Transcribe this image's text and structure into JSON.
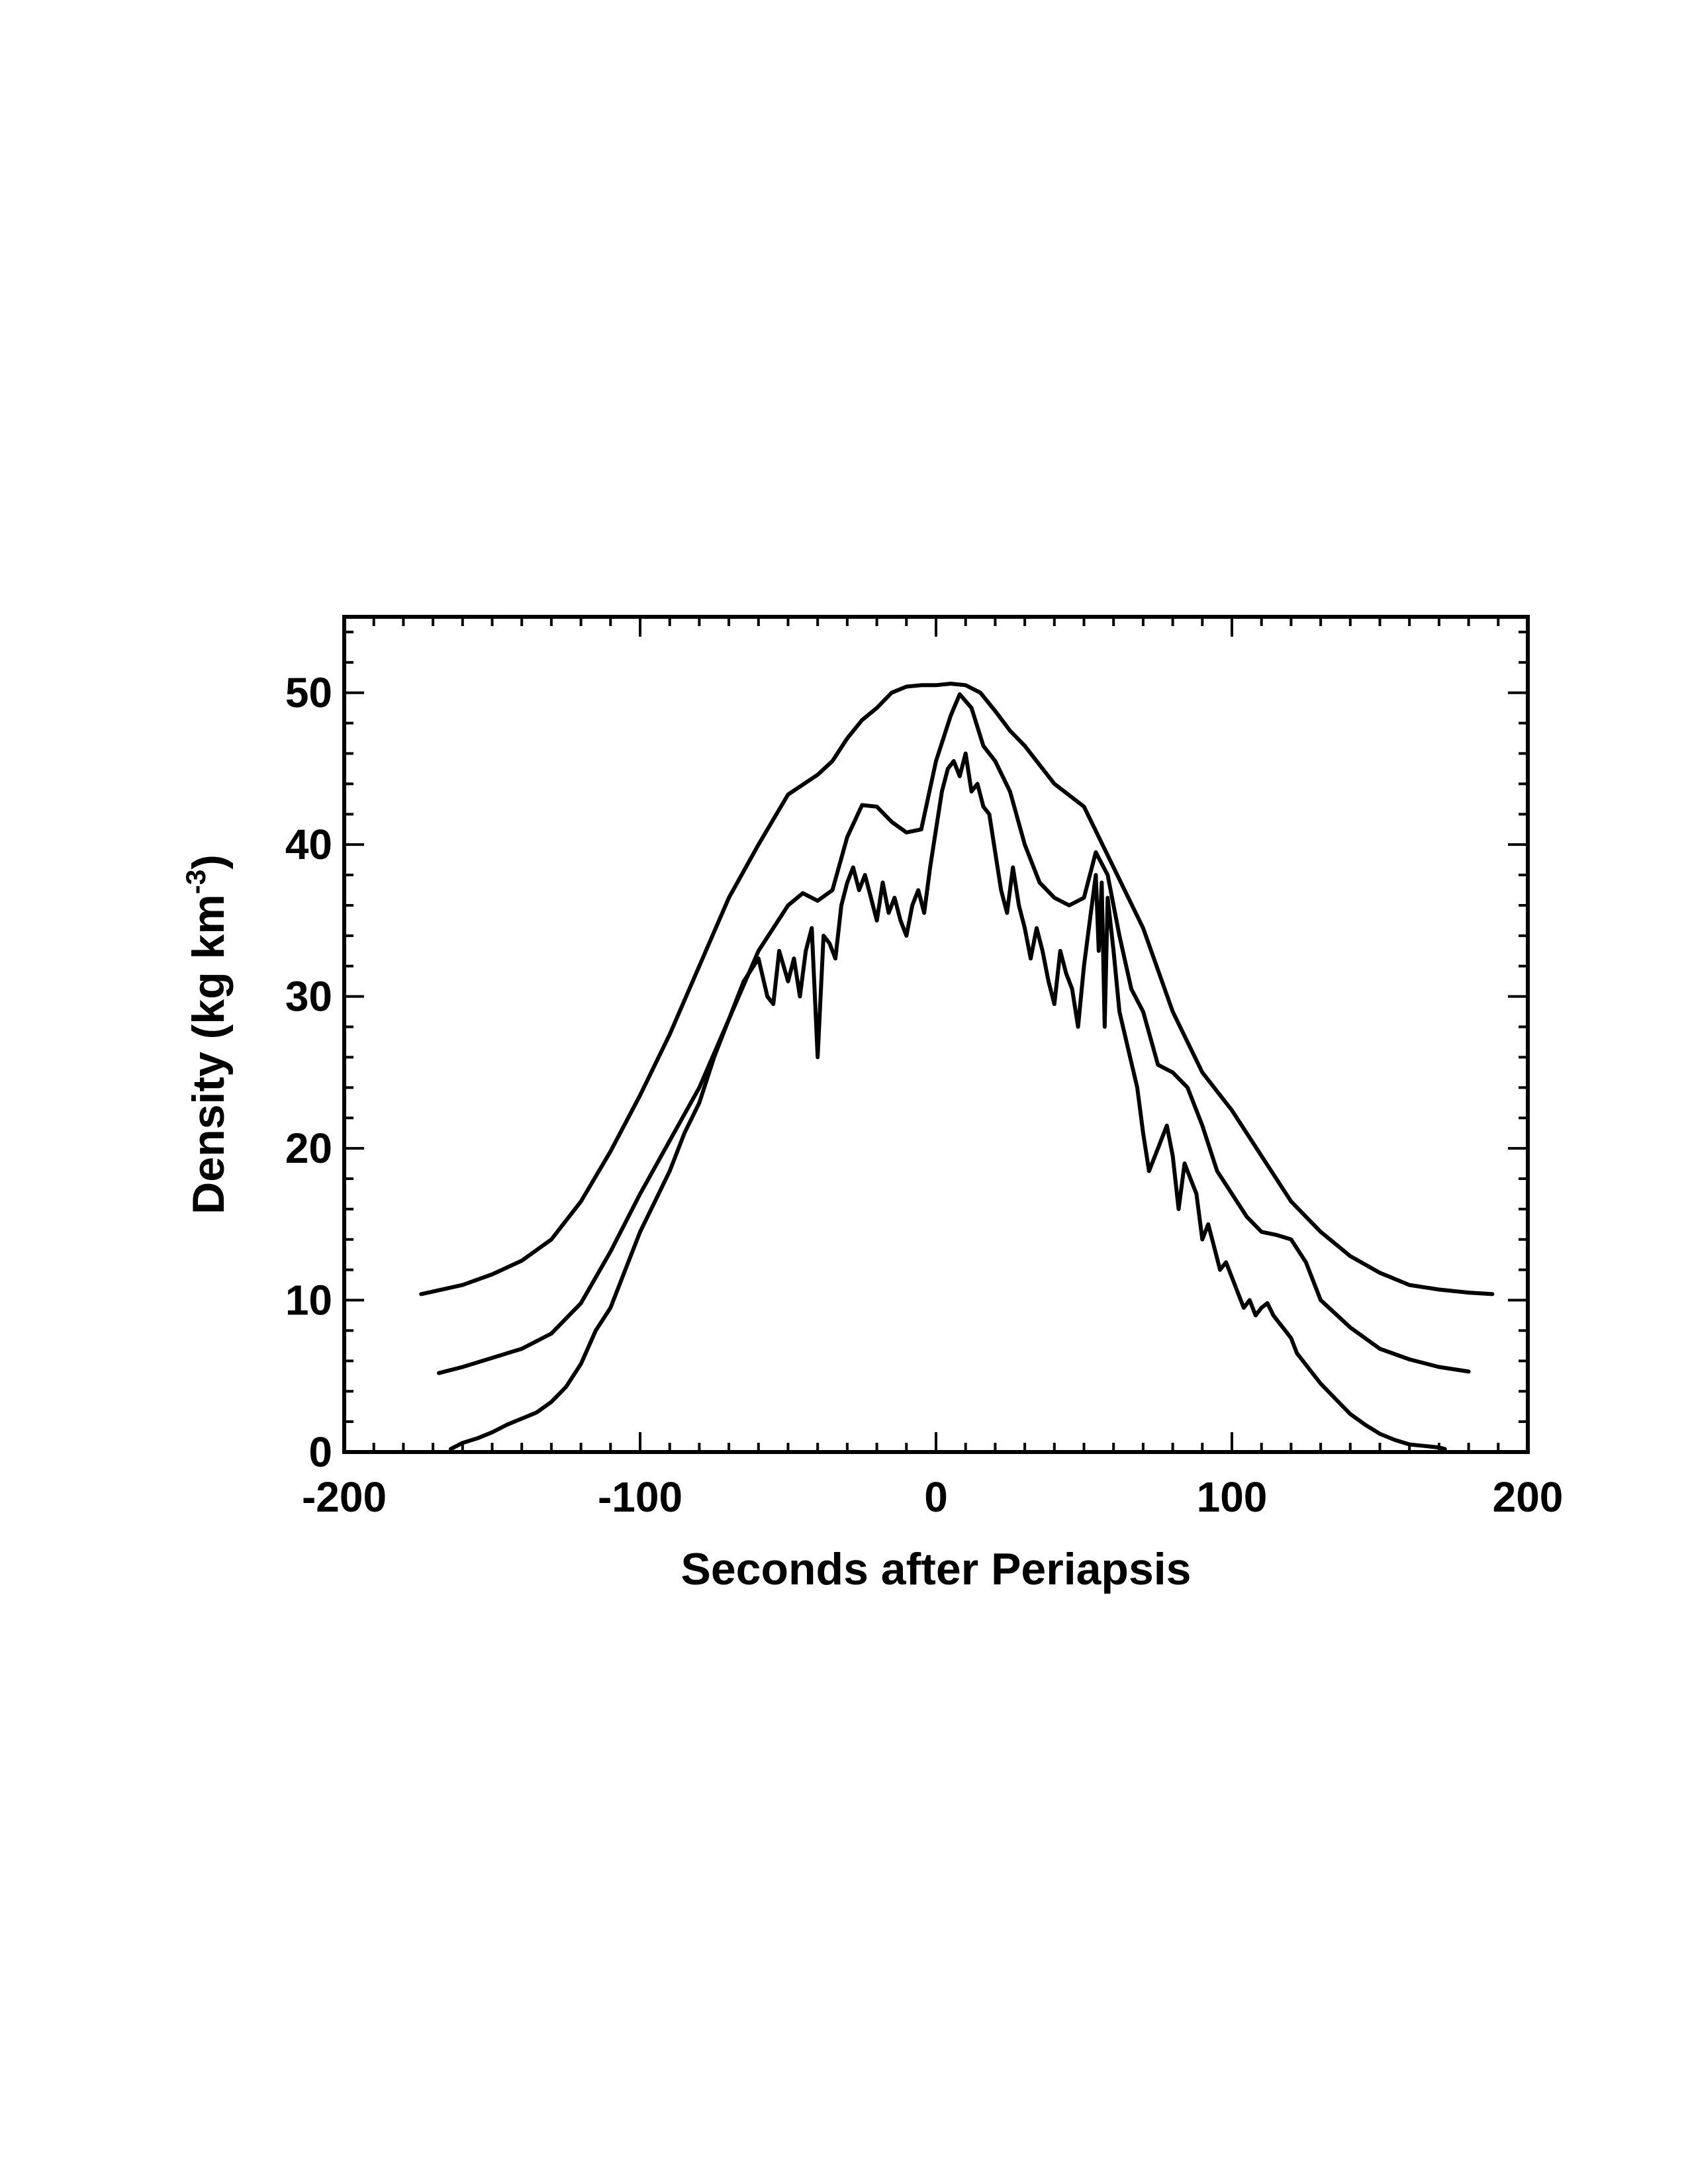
{
  "chart_data": {
    "type": "line",
    "xlabel": "Seconds after Periapsis",
    "ylabel": {
      "prefix": "Density (kg km",
      "superscript": "-3",
      "suffix": ")"
    },
    "xlim": [
      -200,
      200
    ],
    "ylim": [
      0,
      55
    ],
    "xticks": [
      "-200",
      "-100",
      "0",
      "100",
      "200"
    ],
    "yticks": [
      "0",
      "10",
      "20",
      "30",
      "40",
      "50"
    ],
    "grid": false,
    "legend": "none",
    "line_color": "#000000",
    "series": [
      {
        "x": [
          -174,
          -160,
          -150,
          -140,
          -130,
          -120,
          -110,
          -100,
          -90,
          -80,
          -70,
          -60,
          -50,
          -40,
          -35,
          -30,
          -25,
          -20,
          -15,
          -10,
          -5,
          0,
          5,
          10,
          15,
          20,
          25,
          30,
          40,
          50,
          60,
          70,
          80,
          90,
          100,
          110,
          120,
          130,
          140,
          150,
          160,
          170,
          180,
          188
        ],
        "y": [
          10.4,
          11.0,
          11.7,
          12.6,
          14.0,
          16.5,
          19.8,
          23.5,
          27.5,
          32.0,
          36.5,
          40.0,
          43.3,
          44.6,
          45.5,
          47.0,
          48.2,
          49.0,
          50.0,
          50.4,
          50.5,
          50.5,
          50.6,
          50.5,
          50.0,
          48.8,
          47.5,
          46.5,
          44.0,
          42.5,
          38.5,
          34.5,
          29.0,
          25.0,
          22.5,
          19.5,
          16.5,
          14.5,
          12.9,
          11.8,
          11.0,
          10.7,
          10.5,
          10.4
        ]
      },
      {
        "x": [
          -168,
          -160,
          -150,
          -140,
          -130,
          -120,
          -110,
          -100,
          -90,
          -80,
          -70,
          -60,
          -50,
          -45,
          -40,
          -35,
          -30,
          -25,
          -20,
          -15,
          -10,
          -5,
          0,
          5,
          8,
          12,
          16,
          20,
          25,
          30,
          35,
          40,
          45,
          50,
          54,
          58,
          62,
          66,
          70,
          75,
          80,
          85,
          90,
          95,
          100,
          105,
          110,
          115,
          120,
          125,
          130,
          140,
          150,
          160,
          170,
          180
        ],
        "y": [
          5.2,
          5.6,
          6.2,
          6.8,
          7.8,
          9.8,
          13.2,
          17.0,
          20.5,
          24.0,
          28.5,
          33.0,
          36.0,
          36.8,
          36.3,
          37.0,
          40.5,
          42.6,
          42.5,
          41.5,
          40.8,
          41.0,
          45.5,
          48.5,
          49.9,
          49.0,
          46.5,
          45.5,
          43.5,
          40.0,
          37.5,
          36.5,
          36.0,
          36.5,
          39.5,
          38.0,
          34.0,
          30.5,
          29.0,
          25.5,
          25.0,
          24.0,
          21.5,
          18.5,
          17.0,
          15.5,
          14.5,
          14.3,
          14.0,
          12.5,
          10.0,
          8.2,
          6.8,
          6.1,
          5.6,
          5.3
        ]
      },
      {
        "x": [
          -164,
          -160,
          -155,
          -150,
          -145,
          -140,
          -135,
          -130,
          -125,
          -120,
          -115,
          -110,
          -105,
          -100,
          -95,
          -90,
          -85,
          -80,
          -75,
          -70,
          -65,
          -60,
          -57,
          -55,
          -53,
          -50,
          -48,
          -46,
          -44,
          -42,
          -40,
          -38,
          -36,
          -34,
          -32,
          -30,
          -28,
          -26,
          -24,
          -22,
          -20,
          -18,
          -16,
          -14,
          -12,
          -10,
          -8,
          -6,
          -4,
          -2,
          0,
          2,
          4,
          6,
          8,
          10,
          12,
          14,
          16,
          18,
          20,
          22,
          24,
          26,
          28,
          30,
          32,
          34,
          36,
          38,
          40,
          42,
          44,
          46,
          48,
          50,
          52,
          54,
          55,
          56,
          57,
          58,
          60,
          62,
          65,
          68,
          70,
          72,
          75,
          78,
          80,
          82,
          84,
          86,
          88,
          90,
          92,
          94,
          96,
          98,
          100,
          102,
          104,
          106,
          108,
          110,
          112,
          114,
          116,
          118,
          120,
          122,
          124,
          126,
          128,
          130,
          135,
          140,
          145,
          150,
          155,
          160,
          165,
          170,
          172
        ],
        "y": [
          0.2,
          0.6,
          0.9,
          1.3,
          1.8,
          2.2,
          2.6,
          3.3,
          4.3,
          5.8,
          8.0,
          9.5,
          12.0,
          14.5,
          16.5,
          18.5,
          21.0,
          23.0,
          26.0,
          28.5,
          31.0,
          32.5,
          30.0,
          29.5,
          33.0,
          31.0,
          32.5,
          30.0,
          33.0,
          34.5,
          26.0,
          34.0,
          33.5,
          32.5,
          36.0,
          37.5,
          38.5,
          37.0,
          38.0,
          36.5,
          35.0,
          37.5,
          35.5,
          36.5,
          35.0,
          34.0,
          36.0,
          37.0,
          35.5,
          38.5,
          41.0,
          43.5,
          45.0,
          45.5,
          44.5,
          46.0,
          43.5,
          44.0,
          42.5,
          42.0,
          39.5,
          37.0,
          35.5,
          38.5,
          36.0,
          34.5,
          32.5,
          34.5,
          33.0,
          31.0,
          29.5,
          33.0,
          31.5,
          30.5,
          28.0,
          32.0,
          35.0,
          38.0,
          33.0,
          37.5,
          28.0,
          36.5,
          33.0,
          29.0,
          26.5,
          24.0,
          21.0,
          18.5,
          20.0,
          21.5,
          19.5,
          16.0,
          19.0,
          18.0,
          17.0,
          14.0,
          15.0,
          13.5,
          12.0,
          12.5,
          11.5,
          10.5,
          9.5,
          10.0,
          9.0,
          9.5,
          9.8,
          9.0,
          8.5,
          8.0,
          7.5,
          6.5,
          6.0,
          5.5,
          5.0,
          4.5,
          3.5,
          2.5,
          1.8,
          1.2,
          0.8,
          0.5,
          0.4,
          0.3,
          0.2
        ]
      }
    ]
  }
}
